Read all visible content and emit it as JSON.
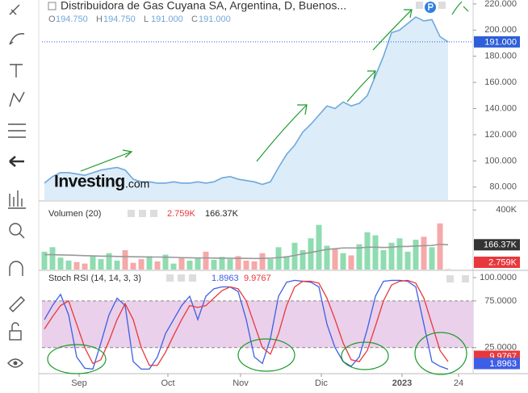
{
  "chart_data": [
    {
      "type": "area",
      "title": "Distribuidora de Gas Cuyana SA, Argentina, D, Buenos...",
      "ohlc": [
        {
          "label": "O",
          "value": "194.750"
        },
        {
          "label": "H",
          "value": "194.750"
        },
        {
          "label": "L",
          "value": "191.000"
        },
        {
          "label": "C",
          "value": "191.000"
        }
      ],
      "watermark": [
        "Investing",
        ".com"
      ],
      "color": "#6fa8dc",
      "fill": "#dcedf9",
      "values": [
        83,
        88,
        91,
        91,
        90,
        89,
        91,
        93,
        94,
        95,
        93,
        86,
        84,
        84,
        83,
        83,
        84,
        83,
        83,
        84,
        83,
        84,
        87,
        88,
        86,
        85,
        84,
        82,
        84,
        95,
        105,
        112,
        122,
        128,
        135,
        142,
        140,
        145,
        142,
        144,
        150,
        165,
        180,
        198,
        200,
        205,
        210,
        207,
        208,
        195,
        191,
        null
      ],
      "ylim": [
        70,
        223
      ],
      "yticks": [
        {
          "value": 80,
          "label": "80.000"
        },
        {
          "value": 100,
          "label": "100.000"
        },
        {
          "value": 120,
          "label": "120.000"
        },
        {
          "value": 140,
          "label": "140.000"
        },
        {
          "value": 160,
          "label": "160.000"
        },
        {
          "value": 180,
          "label": "180.000"
        },
        {
          "value": 200,
          "label": "200.000"
        },
        {
          "value": 220,
          "label": "220.000"
        }
      ]
    },
    {
      "type": "bar",
      "title": "Volumen (20)",
      "series": [
        {
          "values": [
            120000,
            150000,
            80000,
            60000,
            50000,
            40000,
            90000,
            70000,
            110000,
            60000,
            130000,
            45000,
            70000,
            90000,
            55000,
            100000,
            40000,
            80000,
            60000,
            75000,
            120000,
            65000,
            85000,
            70000,
            90000,
            60000,
            55000,
            110000,
            70000,
            150000,
            90000,
            180000,
            130000,
            210000,
            300000,
            160000,
            140000,
            110000,
            95000,
            170000,
            250000,
            230000,
            130000,
            180000,
            210000,
            120000,
            200000,
            220000,
            150000,
            310000,
            2759,
            null
          ],
          "up_color": "#8fdcb0",
          "down_color": "#f5a9a9",
          "color": "#e8383d",
          "last_value_label": "2.759K"
        },
        {
          "values": [
            100000,
            100000,
            98000,
            97000,
            95000,
            93000,
            92000,
            90000,
            90000,
            88000,
            87000,
            86000,
            85000,
            84000,
            84000,
            83000,
            82000,
            80000,
            79000,
            78000,
            78000,
            77000,
            76000,
            76000,
            75000,
            75000,
            74000,
            75000,
            76000,
            80000,
            85000,
            95000,
            105000,
            115000,
            125000,
            135000,
            140000,
            145000,
            145000,
            145000,
            150000,
            150000,
            148000,
            150000,
            155000,
            155000,
            158000,
            160000,
            162000,
            170000,
            166370,
            null
          ],
          "color": "#999999",
          "label_color": "#333333",
          "last_value_label": "166.37K"
        }
      ],
      "ylim": [
        0,
        450000
      ],
      "yticks": [
        {
          "value": 400000,
          "label": "400K"
        }
      ]
    },
    {
      "type": "line",
      "title": "Stoch RSI (14, 14, 3, 3)",
      "series": [
        {
          "color": "#3d5ee6",
          "last_value_label": "1.8963",
          "values": [
            55,
            70,
            82,
            60,
            15,
            3,
            2,
            30,
            60,
            78,
            70,
            10,
            2,
            2,
            15,
            40,
            55,
            70,
            80,
            55,
            80,
            88,
            90,
            90,
            85,
            55,
            15,
            8,
            35,
            80,
            95,
            97,
            96,
            95,
            90,
            50,
            25,
            10,
            5,
            15,
            45,
            80,
            96,
            97,
            97,
            96,
            90,
            50,
            10,
            5,
            1.8963,
            null
          ]
        },
        {
          "color": "#e8383d",
          "last_value_label": "9.9767",
          "values": [
            45,
            58,
            70,
            75,
            50,
            25,
            8,
            12,
            32,
            55,
            72,
            55,
            25,
            6,
            6,
            20,
            38,
            55,
            70,
            68,
            70,
            78,
            86,
            90,
            88,
            75,
            50,
            25,
            18,
            40,
            70,
            90,
            96,
            96,
            94,
            78,
            55,
            30,
            12,
            10,
            22,
            48,
            75,
            92,
            96,
            97,
            94,
            78,
            50,
            22,
            9.9767,
            null
          ]
        }
      ],
      "band": [
        25,
        75
      ],
      "band_color": "#ead0ea",
      "ylim": [
        -2,
        106
      ],
      "yticks": [
        {
          "value": 100,
          "label": "100.0000"
        },
        {
          "value": 75,
          "label": "75.0000"
        },
        {
          "value": 25,
          "label": "25.0000"
        }
      ],
      "categories": [
        null,
        null,
        null,
        null,
        "Sep",
        null,
        null,
        null,
        null,
        null,
        null,
        null,
        null,
        null,
        null,
        "Oct",
        null,
        null,
        null,
        null,
        null,
        null,
        null,
        null,
        "Nov",
        null,
        null,
        null,
        null,
        null,
        null,
        null,
        null,
        null,
        "Dic",
        null,
        null,
        null,
        null,
        null,
        null,
        null,
        null,
        null,
        "2023",
        null,
        null,
        null,
        null,
        null,
        null,
        "24"
      ]
    }
  ]
}
